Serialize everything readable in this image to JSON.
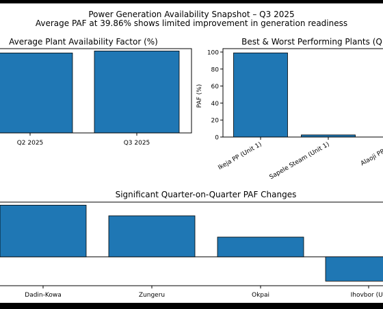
{
  "figure": {
    "title": "Power Generation Availability Snapshot – Q3 2025",
    "subtitle": "Average PAF at 39.86% shows limited improvement in generation readiness"
  },
  "colors": {
    "bar": "#1f77b4",
    "edge": "#000000",
    "background": "#ffffff"
  },
  "chart_data": [
    {
      "type": "bar",
      "title": "Average Plant Availability Factor (%)",
      "categories": [
        "Q2 2025",
        "Q3 2025"
      ],
      "values": [
        38.9,
        39.86
      ],
      "ylabel": "",
      "ylim": [
        0,
        41
      ]
    },
    {
      "type": "bar",
      "title": "Best & Worst Performing Plants (Q",
      "categories": [
        "Ikeja PP (Unit 1)",
        "Sapele Steam (Unit 1)",
        "Alaoji PP (Uni"
      ],
      "values": [
        99,
        2.5,
        0
      ],
      "ylabel": "PAF (%)",
      "yticks": [
        0,
        20,
        40,
        60,
        80,
        100
      ],
      "ylim": [
        0,
        104
      ]
    },
    {
      "type": "bar",
      "title": "Significant Quarter-on-Quarter PAF Changes",
      "categories": [
        "Dadin-Kowa",
        "Zungeru",
        "Okpai",
        "Ihovbor (Un"
      ],
      "values": [
        34,
        27,
        13,
        -16
      ],
      "ylabel": "",
      "ylim": [
        -19,
        36
      ]
    }
  ]
}
